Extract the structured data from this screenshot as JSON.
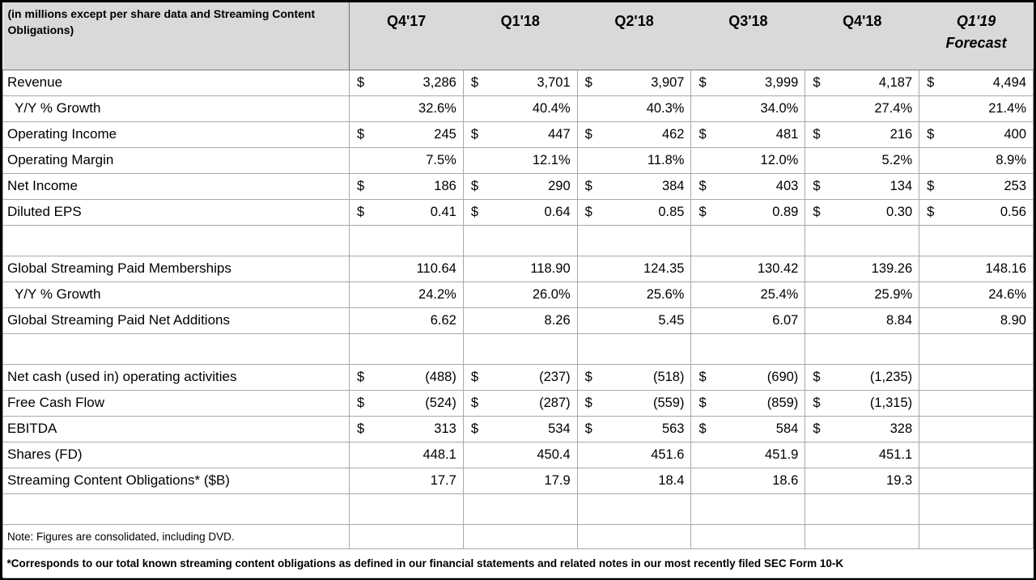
{
  "header": {
    "title": "(in millions except per share data and Streaming Content Obligations)",
    "columns": [
      {
        "label": "Q4'17"
      },
      {
        "label": "Q1'18"
      },
      {
        "label": "Q2'18"
      },
      {
        "label": "Q3'18"
      },
      {
        "label": "Q4'18"
      },
      {
        "label": "Q1'19",
        "sublabel": "Forecast",
        "italic": true
      }
    ]
  },
  "table": {
    "currency_symbol": "$",
    "rows": [
      {
        "label": "Revenue",
        "format": "dollar",
        "values": [
          "3,286",
          "3,701",
          "3,907",
          "3,999",
          "4,187",
          "4,494"
        ]
      },
      {
        "label": "Y/Y % Growth",
        "indent": true,
        "format": "plain",
        "values": [
          "32.6%",
          "40.4%",
          "40.3%",
          "34.0%",
          "27.4%",
          "21.4%"
        ]
      },
      {
        "label": "Operating Income",
        "format": "dollar",
        "values": [
          "245",
          "447",
          "462",
          "481",
          "216",
          "400"
        ]
      },
      {
        "label": "Operating Margin",
        "format": "plain",
        "values": [
          "7.5%",
          "12.1%",
          "11.8%",
          "12.0%",
          "5.2%",
          "8.9%"
        ]
      },
      {
        "label": "Net Income",
        "format": "dollar",
        "values": [
          "186",
          "290",
          "384",
          "403",
          "134",
          "253"
        ]
      },
      {
        "label": "Diluted EPS",
        "format": "dollar",
        "values": [
          "0.41",
          "0.64",
          "0.85",
          "0.89",
          "0.30",
          "0.56"
        ]
      },
      {
        "type": "blank"
      },
      {
        "label": "Global Streaming Paid Memberships",
        "format": "plain",
        "values": [
          "110.64",
          "118.90",
          "124.35",
          "130.42",
          "139.26",
          "148.16"
        ]
      },
      {
        "label": "Y/Y % Growth",
        "indent": true,
        "format": "plain",
        "values": [
          "24.2%",
          "26.0%",
          "25.6%",
          "25.4%",
          "25.9%",
          "24.6%"
        ]
      },
      {
        "label": "Global Streaming Paid Net Additions",
        "format": "plain",
        "values": [
          "6.62",
          "8.26",
          "5.45",
          "6.07",
          "8.84",
          "8.90"
        ]
      },
      {
        "type": "blank"
      },
      {
        "label": "Net cash (used in) operating activities",
        "format": "dollar",
        "values": [
          "(488)",
          "(237)",
          "(518)",
          "(690)",
          "(1,235)",
          ""
        ]
      },
      {
        "label": "Free Cash Flow",
        "format": "dollar",
        "values": [
          "(524)",
          "(287)",
          "(559)",
          "(859)",
          "(1,315)",
          ""
        ]
      },
      {
        "label": "EBITDA",
        "format": "dollar",
        "values": [
          "313",
          "534",
          "563",
          "584",
          "328",
          ""
        ]
      },
      {
        "label": "Shares (FD)",
        "format": "plain",
        "values": [
          "448.1",
          "450.4",
          "451.6",
          "451.9",
          "451.1",
          ""
        ]
      },
      {
        "label": "Streaming Content Obligations* ($B)",
        "format": "plain",
        "values": [
          "17.7",
          "17.9",
          "18.4",
          "18.6",
          "19.3",
          ""
        ]
      },
      {
        "type": "blank"
      },
      {
        "type": "note",
        "label": "Note: Figures are consolidated, including DVD."
      },
      {
        "type": "footnote",
        "label": "*Corresponds to our total known streaming content obligations as defined in our financial statements and related notes in our most recently filed SEC Form 10-K"
      }
    ]
  },
  "colors": {
    "header_background": "#d9d9d9",
    "grid_line": "#a8a8a8",
    "outer_border": "#000000",
    "text": "#000000"
  }
}
